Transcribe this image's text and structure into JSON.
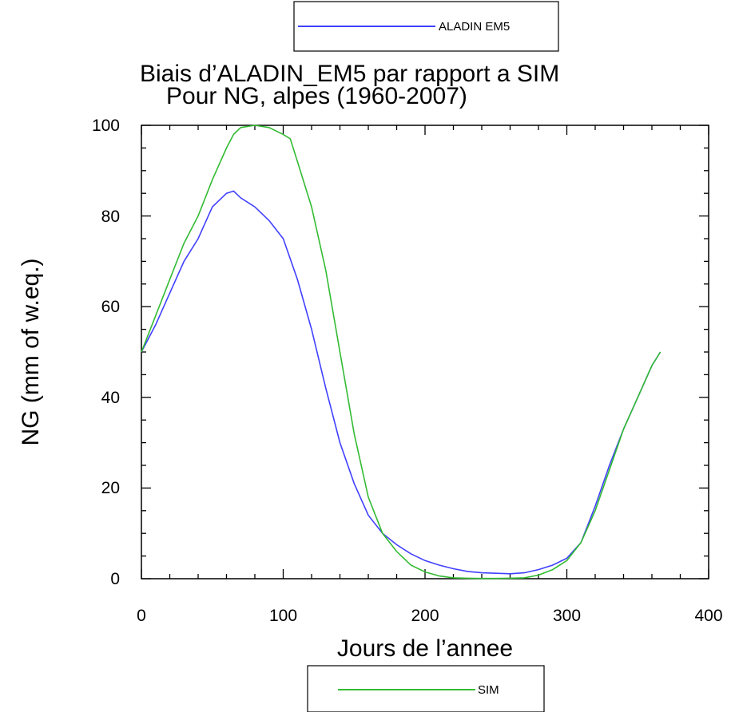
{
  "chart_data": {
    "type": "line",
    "title": "Biais d’ALADIN_EM5 par rapport a SIM",
    "subtitle": "Pour NG, alpes (1960-2007)",
    "xlabel": "Jours de l’annee",
    "ylabel": "NG (mm of w.eq.)",
    "xlim": [
      0,
      400
    ],
    "ylim": [
      0,
      100
    ],
    "x_ticks": [
      "0",
      "100",
      "200",
      "300",
      "400"
    ],
    "y_ticks": [
      "0",
      "20",
      "40",
      "60",
      "80",
      "100"
    ],
    "grid": false,
    "legend_placement": "top and bottom (separate boxes)",
    "series": [
      {
        "name": "ALADIN EM5",
        "color": "#4040ff",
        "x": [
          0,
          10,
          20,
          30,
          40,
          50,
          60,
          65,
          70,
          80,
          90,
          100,
          110,
          120,
          130,
          140,
          150,
          160,
          170,
          180,
          190,
          200,
          210,
          220,
          230,
          240,
          250,
          260,
          270,
          280,
          290,
          300,
          310,
          320,
          330,
          340,
          350,
          360,
          366
        ],
        "y": [
          50,
          56,
          63,
          70,
          75,
          82,
          85,
          85.5,
          84,
          82,
          79,
          75,
          66,
          55,
          42,
          30,
          21,
          14,
          10,
          7.5,
          5.5,
          4,
          3,
          2.2,
          1.6,
          1.3,
          1.2,
          1.1,
          1.3,
          2,
          3,
          4.5,
          8,
          16,
          25,
          33,
          40,
          47,
          50
        ]
      },
      {
        "name": "SIM",
        "color": "#33bb33",
        "x": [
          0,
          10,
          20,
          30,
          40,
          50,
          60,
          65,
          70,
          80,
          90,
          100,
          105,
          110,
          120,
          130,
          140,
          150,
          160,
          170,
          180,
          190,
          200,
          210,
          220,
          230,
          240,
          250,
          260,
          270,
          280,
          290,
          300,
          310,
          320,
          330,
          340,
          350,
          360,
          366
        ],
        "y": [
          50,
          58,
          66,
          74,
          80,
          88,
          95,
          98,
          99.5,
          100,
          99.5,
          98,
          97,
          92,
          82,
          68,
          50,
          32,
          18,
          10,
          6,
          3,
          1.5,
          0.6,
          0.2,
          0.1,
          0.05,
          0.05,
          0.1,
          0.2,
          0.8,
          2,
          4,
          8,
          15,
          24,
          33,
          40,
          47,
          50
        ]
      }
    ]
  }
}
